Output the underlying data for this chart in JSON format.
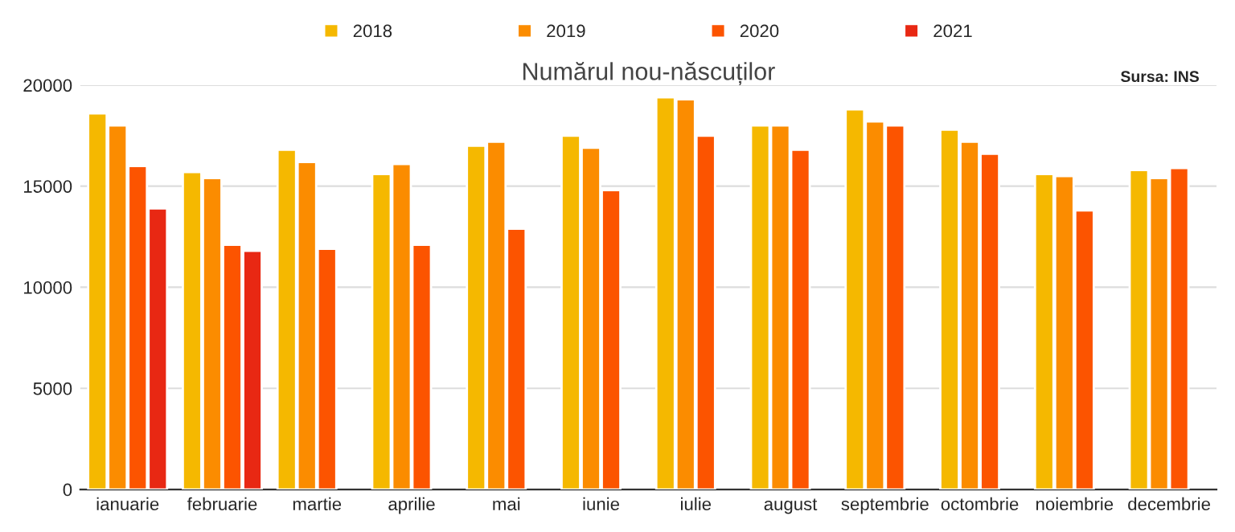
{
  "chart_data": {
    "type": "bar",
    "title": "Numărul nou-născuților",
    "categories": [
      "ianuarie",
      "februarie",
      "martie",
      "aprilie",
      "mai",
      "iunie",
      "iulie",
      "august",
      "septembrie",
      "octombrie",
      "noiembrie",
      "decembrie"
    ],
    "series": [
      {
        "name": "2018",
        "color": "#f5b800",
        "values": [
          18600,
          15700,
          16800,
          15600,
          17000,
          17500,
          19400,
          18000,
          18800,
          17800,
          15600,
          15800
        ]
      },
      {
        "name": "2019",
        "color": "#fb8c00",
        "values": [
          18000,
          15400,
          16200,
          16100,
          17200,
          16900,
          19300,
          18000,
          18200,
          17200,
          15500,
          15400
        ]
      },
      {
        "name": "2020",
        "color": "#fc5400",
        "values": [
          16000,
          12100,
          11900,
          12100,
          12900,
          14800,
          17500,
          16800,
          18000,
          16600,
          13800,
          15900
        ]
      },
      {
        "name": "2021",
        "color": "#e82813",
        "values": [
          13900,
          11800,
          null,
          null,
          null,
          null,
          null,
          null,
          null,
          null,
          null,
          null
        ]
      }
    ],
    "ylim": [
      0,
      20000
    ],
    "yticks": [
      0,
      5000,
      10000,
      15000,
      20000
    ],
    "grid": "y",
    "legend": "top",
    "annotations": [
      "Sursa: INS"
    ]
  }
}
